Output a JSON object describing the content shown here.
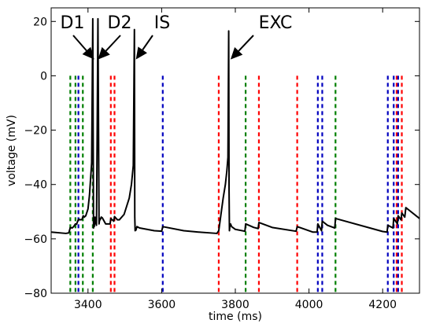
{
  "chart_data": {
    "type": "line",
    "title": "",
    "xlabel": "time (ms)",
    "ylabel": "voltage (mV)",
    "xlim": [
      3300,
      4300
    ],
    "ylim": [
      -80,
      25
    ],
    "xticks": [
      3400,
      3600,
      3800,
      4000,
      4200
    ],
    "yticks": [
      -80,
      -60,
      -40,
      -20,
      0,
      20
    ],
    "grid": false,
    "colors": {
      "trace": "#000000",
      "green": "#007f00",
      "red": "#ff0000",
      "blue": "#0000bf"
    },
    "series": [
      {
        "color": "trace",
        "x": [
          3300,
          3340,
          3348,
          3352,
          3357,
          3361,
          3366,
          3369,
          3374,
          3381,
          3384,
          3387,
          3390,
          3394,
          3400,
          3404,
          3407,
          3410,
          3413,
          3414,
          3415,
          3416,
          3417,
          3419,
          3421,
          3423,
          3425,
          3427,
          3430,
          3432,
          3433,
          3436,
          3439,
          3448,
          3460,
          3462,
          3470,
          3472,
          3480,
          3485,
          3498,
          3505,
          3512,
          3518,
          3523,
          3526,
          3527,
          3528,
          3530,
          3533,
          3540,
          3560,
          3580,
          3600,
          3603,
          3660,
          3700,
          3750,
          3755,
          3762,
          3767,
          3773,
          3777,
          3780,
          3782,
          3783,
          3784,
          3785,
          3787,
          3790,
          3800,
          3826,
          3828,
          3850,
          3862,
          3864,
          3900,
          3965,
          3968,
          4010,
          4022,
          4024,
          4034,
          4036,
          4050,
          4070,
          4072,
          4200,
          4212,
          4214,
          4228,
          4230,
          4240,
          4242,
          4250,
          4252,
          4260,
          4263,
          4300
        ],
        "y": [
          -57.5,
          -58,
          -57.8,
          -55.8,
          -56,
          -55.5,
          -54.5,
          -54.6,
          -52.8,
          -53,
          -52.8,
          -51.5,
          -52,
          -51.5,
          -49,
          -44,
          -38,
          -32,
          21,
          -20,
          -56,
          -54,
          -55.5,
          -52,
          -54,
          -55,
          -20,
          21,
          -54.5,
          -52.5,
          -53,
          -52,
          -52.3,
          -54.5,
          -54.5,
          -52.5,
          -53.5,
          -51.8,
          -53,
          -53,
          -51,
          -48,
          -45,
          -40,
          -33,
          17,
          -52,
          -57,
          -56.8,
          -55.5,
          -56,
          -56.5,
          -57,
          -57.2,
          -55.5,
          -57,
          -57.5,
          -58,
          -57,
          -50,
          -45,
          -40,
          -35,
          -30,
          16.5,
          -42,
          -57,
          -55.5,
          -54.5,
          -55.5,
          -56.5,
          -57.2,
          -54.5,
          -55.8,
          -56.2,
          -54,
          -55.8,
          -57.2,
          -55.5,
          -57.5,
          -57.5,
          -54.5,
          -57,
          -53.5,
          -55,
          -56,
          -52.5,
          -57.3,
          -57.5,
          -55,
          -56,
          -52.5,
          -54.5,
          -51.5,
          -53,
          -50.5,
          -52,
          -48.5,
          -52.5
        ]
      }
    ],
    "vlines": [
      {
        "x": 3352,
        "color": "green"
      },
      {
        "x": 3366,
        "color": "green"
      },
      {
        "x": 3374,
        "color": "blue"
      },
      {
        "x": 3386,
        "color": "green"
      },
      {
        "x": 3413,
        "color": "green"
      },
      {
        "x": 3462,
        "color": "red"
      },
      {
        "x": 3472,
        "color": "red"
      },
      {
        "x": 3603,
        "color": "blue"
      },
      {
        "x": 3755,
        "color": "red"
      },
      {
        "x": 3828,
        "color": "green"
      },
      {
        "x": 3864,
        "color": "red"
      },
      {
        "x": 3968,
        "color": "red"
      },
      {
        "x": 4024,
        "color": "blue"
      },
      {
        "x": 4036,
        "color": "blue"
      },
      {
        "x": 4072,
        "color": "green"
      },
      {
        "x": 4214,
        "color": "blue"
      },
      {
        "x": 4230,
        "color": "blue"
      },
      {
        "x": 4238,
        "color": "red"
      },
      {
        "x": 4242,
        "color": "blue"
      },
      {
        "x": 4252,
        "color": "red"
      }
    ],
    "annotations": [
      {
        "text": "D1",
        "target_x": 3417,
        "target_y": 6
      },
      {
        "text": "D2",
        "target_x": 3427,
        "target_y": 6
      },
      {
        "text": "IS",
        "target_x": 3530,
        "target_y": 6
      },
      {
        "text": "EXC",
        "target_x": 3787,
        "target_y": 6
      }
    ]
  }
}
